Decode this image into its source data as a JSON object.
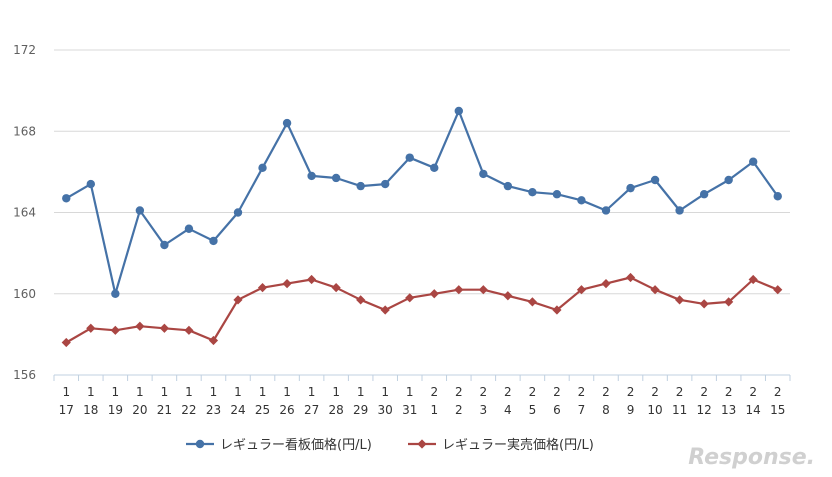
{
  "chart_data": {
    "type": "line",
    "title": "",
    "xlabel": "",
    "ylabel": "",
    "ylim": [
      156,
      172
    ],
    "yticks": [
      156,
      160,
      164,
      168,
      172
    ],
    "grid": true,
    "legend_position": "bottom",
    "categories": [
      {
        "month": "1",
        "day": "17"
      },
      {
        "month": "1",
        "day": "18"
      },
      {
        "month": "1",
        "day": "19"
      },
      {
        "month": "1",
        "day": "20"
      },
      {
        "month": "1",
        "day": "21"
      },
      {
        "month": "1",
        "day": "22"
      },
      {
        "month": "1",
        "day": "23"
      },
      {
        "month": "1",
        "day": "24"
      },
      {
        "month": "1",
        "day": "25"
      },
      {
        "month": "1",
        "day": "26"
      },
      {
        "month": "1",
        "day": "27"
      },
      {
        "month": "1",
        "day": "28"
      },
      {
        "month": "1",
        "day": "29"
      },
      {
        "month": "1",
        "day": "30"
      },
      {
        "month": "1",
        "day": "31"
      },
      {
        "month": "2",
        "day": "1"
      },
      {
        "month": "2",
        "day": "2"
      },
      {
        "month": "2",
        "day": "3"
      },
      {
        "month": "2",
        "day": "4"
      },
      {
        "month": "2",
        "day": "5"
      },
      {
        "month": "2",
        "day": "6"
      },
      {
        "month": "2",
        "day": "7"
      },
      {
        "month": "2",
        "day": "8"
      },
      {
        "month": "2",
        "day": "9"
      },
      {
        "month": "2",
        "day": "10"
      },
      {
        "month": "2",
        "day": "11"
      },
      {
        "month": "2",
        "day": "12"
      },
      {
        "month": "2",
        "day": "13"
      },
      {
        "month": "2",
        "day": "14"
      },
      {
        "month": "2",
        "day": "15"
      }
    ],
    "series": [
      {
        "name": "レギュラー看板価格(円/L)",
        "color": "#4572a7",
        "marker": "circle",
        "values": [
          164.7,
          165.4,
          160.0,
          164.1,
          162.4,
          163.2,
          162.6,
          164.0,
          166.2,
          168.4,
          165.8,
          165.7,
          165.3,
          165.4,
          166.7,
          166.2,
          169.0,
          165.9,
          165.3,
          165.0,
          164.9,
          164.6,
          164.1,
          165.2,
          165.6,
          164.1,
          164.9,
          165.6,
          166.5,
          164.8
        ]
      },
      {
        "name": "レギュラー実売価格(円/L)",
        "color": "#aa4643",
        "marker": "diamond",
        "values": [
          157.6,
          158.3,
          158.2,
          158.4,
          158.3,
          158.2,
          157.7,
          159.7,
          160.3,
          160.5,
          160.7,
          160.3,
          159.7,
          159.2,
          159.8,
          160.0,
          160.2,
          160.2,
          159.9,
          159.6,
          159.2,
          160.2,
          160.5,
          160.8,
          160.2,
          159.7,
          159.5,
          159.6,
          160.7,
          160.2
        ]
      }
    ]
  },
  "watermark": {
    "text": "Response."
  },
  "colors": {
    "grid": "#d8d8d8",
    "axis": "#c0d0e0",
    "tick_label": "#606060",
    "watermark": "#d0d0d0"
  }
}
